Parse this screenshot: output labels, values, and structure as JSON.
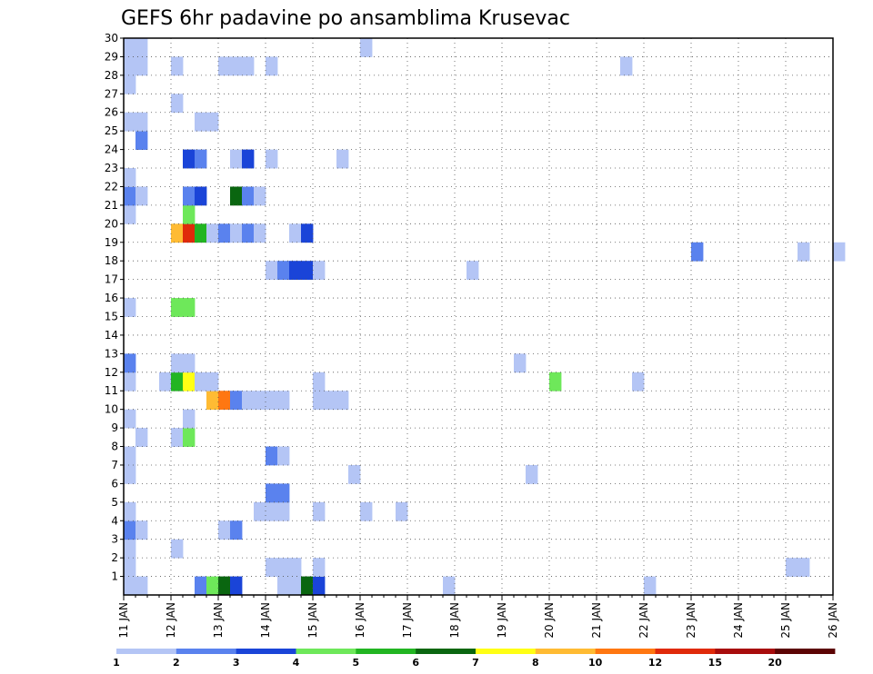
{
  "chart_data": {
    "type": "heatmap",
    "title": "GEFS 6hr padavine po ansamblima Krusevac",
    "xlabel": "",
    "ylabel": "",
    "x_ticks": [
      "11 JAN",
      "12 JAN",
      "13 JAN",
      "14 JAN",
      "15 JAN",
      "16 JAN",
      "17 JAN",
      "18 JAN",
      "19 JAN",
      "20 JAN",
      "21 JAN",
      "22 JAN",
      "23 JAN",
      "24 JAN",
      "25 JAN",
      "26 JAN"
    ],
    "y_ticks": [
      "1",
      "2",
      "3",
      "4",
      "5",
      "6",
      "7",
      "8",
      "9",
      "10",
      "11",
      "12",
      "13",
      "14",
      "15",
      "16",
      "17",
      "18",
      "19",
      "20",
      "21",
      "22",
      "23",
      "24",
      "25",
      "26",
      "27",
      "28",
      "29",
      "30"
    ],
    "xlim_days": [
      11,
      26
    ],
    "ylim": [
      0,
      30
    ],
    "time_step_hours": 6,
    "grid": true,
    "legend_position": "bottom",
    "legend": {
      "labels": [
        "1",
        "2",
        "3",
        "4",
        "5",
        "6",
        "7",
        "8",
        "10",
        "12",
        "15",
        "20"
      ],
      "colors": [
        "#b4c5f5",
        "#5a82ee",
        "#1a44d8",
        "#6ee85a",
        "#22b522",
        "#0a6610",
        "#ffff14",
        "#ffbb33",
        "#ff7711",
        "#e02a0a",
        "#a80c0c",
        "#5c0404"
      ]
    },
    "cells": [
      {
        "step": 0,
        "member": 0,
        "level": 1
      },
      {
        "step": 1,
        "member": 0,
        "level": 1
      },
      {
        "step": 6,
        "member": 0,
        "level": 2
      },
      {
        "step": 7,
        "member": 0,
        "level": 4
      },
      {
        "step": 8,
        "member": 0,
        "level": 6
      },
      {
        "step": 9,
        "member": 0,
        "level": 3
      },
      {
        "step": 13,
        "member": 0,
        "level": 1
      },
      {
        "step": 14,
        "member": 0,
        "level": 1
      },
      {
        "step": 15,
        "member": 0,
        "level": 6
      },
      {
        "step": 16,
        "member": 0,
        "level": 3
      },
      {
        "step": 27,
        "member": 0,
        "level": 1
      },
      {
        "step": 44,
        "member": 0,
        "level": 1
      },
      {
        "step": 0,
        "member": 1,
        "level": 1
      },
      {
        "step": 12,
        "member": 1,
        "level": 1
      },
      {
        "step": 13,
        "member": 1,
        "level": 1
      },
      {
        "step": 14,
        "member": 1,
        "level": 1
      },
      {
        "step": 16,
        "member": 1,
        "level": 1
      },
      {
        "step": 56,
        "member": 1,
        "level": 1
      },
      {
        "step": 57,
        "member": 1,
        "level": 1
      },
      {
        "step": 0,
        "member": 2,
        "level": 1
      },
      {
        "step": 4,
        "member": 2,
        "level": 1
      },
      {
        "step": 0,
        "member": 3,
        "level": 2
      },
      {
        "step": 1,
        "member": 3,
        "level": 1
      },
      {
        "step": 8,
        "member": 3,
        "level": 1
      },
      {
        "step": 9,
        "member": 3,
        "level": 2
      },
      {
        "step": 0,
        "member": 4,
        "level": 1
      },
      {
        "step": 11,
        "member": 4,
        "level": 1
      },
      {
        "step": 12,
        "member": 4,
        "level": 1
      },
      {
        "step": 13,
        "member": 4,
        "level": 1
      },
      {
        "step": 16,
        "member": 4,
        "level": 1
      },
      {
        "step": 20,
        "member": 4,
        "level": 1
      },
      {
        "step": 23,
        "member": 4,
        "level": 1
      },
      {
        "step": 12,
        "member": 5,
        "level": 2
      },
      {
        "step": 13,
        "member": 5,
        "level": 2
      },
      {
        "step": 0,
        "member": 6,
        "level": 1
      },
      {
        "step": 19,
        "member": 6,
        "level": 1
      },
      {
        "step": 34,
        "member": 6,
        "level": 1
      },
      {
        "step": 0,
        "member": 7,
        "level": 1
      },
      {
        "step": 12,
        "member": 7,
        "level": 2
      },
      {
        "step": 13,
        "member": 7,
        "level": 1
      },
      {
        "step": 1,
        "member": 8,
        "level": 1
      },
      {
        "step": 4,
        "member": 8,
        "level": 1
      },
      {
        "step": 5,
        "member": 8,
        "level": 4
      },
      {
        "step": 0,
        "member": 9,
        "level": 1
      },
      {
        "step": 5,
        "member": 9,
        "level": 1
      },
      {
        "step": 7,
        "member": 10,
        "level": 8
      },
      {
        "step": 8,
        "member": 10,
        "level": 9
      },
      {
        "step": 9,
        "member": 10,
        "level": 2
      },
      {
        "step": 10,
        "member": 10,
        "level": 1
      },
      {
        "step": 11,
        "member": 10,
        "level": 1
      },
      {
        "step": 12,
        "member": 10,
        "level": 1
      },
      {
        "step": 13,
        "member": 10,
        "level": 1
      },
      {
        "step": 16,
        "member": 10,
        "level": 1
      },
      {
        "step": 17,
        "member": 10,
        "level": 1
      },
      {
        "step": 18,
        "member": 10,
        "level": 1
      },
      {
        "step": 0,
        "member": 11,
        "level": 1
      },
      {
        "step": 3,
        "member": 11,
        "level": 1
      },
      {
        "step": 4,
        "member": 11,
        "level": 5
      },
      {
        "step": 5,
        "member": 11,
        "level": 7
      },
      {
        "step": 6,
        "member": 11,
        "level": 1
      },
      {
        "step": 7,
        "member": 11,
        "level": 1
      },
      {
        "step": 16,
        "member": 11,
        "level": 1
      },
      {
        "step": 36,
        "member": 11,
        "level": 4
      },
      {
        "step": 43,
        "member": 11,
        "level": 1
      },
      {
        "step": 0,
        "member": 12,
        "level": 2
      },
      {
        "step": 4,
        "member": 12,
        "level": 1
      },
      {
        "step": 5,
        "member": 12,
        "level": 1
      },
      {
        "step": 33,
        "member": 12,
        "level": 1
      },
      {
        "step": 0,
        "member": 15,
        "level": 1
      },
      {
        "step": 4,
        "member": 15,
        "level": 4
      },
      {
        "step": 5,
        "member": 15,
        "level": 4
      },
      {
        "step": 12,
        "member": 17,
        "level": 1
      },
      {
        "step": 13,
        "member": 17,
        "level": 2
      },
      {
        "step": 14,
        "member": 17,
        "level": 3
      },
      {
        "step": 15,
        "member": 17,
        "level": 3
      },
      {
        "step": 16,
        "member": 17,
        "level": 1
      },
      {
        "step": 29,
        "member": 17,
        "level": 1
      },
      {
        "step": 48,
        "member": 18,
        "level": 2
      },
      {
        "step": 57,
        "member": 18,
        "level": 1
      },
      {
        "step": 60,
        "member": 18,
        "level": 1
      },
      {
        "step": 4,
        "member": 19,
        "level": 8
      },
      {
        "step": 5,
        "member": 19,
        "level": 10
      },
      {
        "step": 6,
        "member": 19,
        "level": 5
      },
      {
        "step": 7,
        "member": 19,
        "level": 1
      },
      {
        "step": 8,
        "member": 19,
        "level": 2
      },
      {
        "step": 9,
        "member": 19,
        "level": 1
      },
      {
        "step": 10,
        "member": 19,
        "level": 2
      },
      {
        "step": 11,
        "member": 19,
        "level": 1
      },
      {
        "step": 14,
        "member": 19,
        "level": 1
      },
      {
        "step": 15,
        "member": 19,
        "level": 3
      },
      {
        "step": 0,
        "member": 20,
        "level": 1
      },
      {
        "step": 5,
        "member": 20,
        "level": 4
      },
      {
        "step": 0,
        "member": 21,
        "level": 2
      },
      {
        "step": 1,
        "member": 21,
        "level": 1
      },
      {
        "step": 5,
        "member": 21,
        "level": 2
      },
      {
        "step": 6,
        "member": 21,
        "level": 3
      },
      {
        "step": 9,
        "member": 21,
        "level": 6
      },
      {
        "step": 10,
        "member": 21,
        "level": 2
      },
      {
        "step": 11,
        "member": 21,
        "level": 1
      },
      {
        "step": 0,
        "member": 22,
        "level": 1
      },
      {
        "step": 5,
        "member": 23,
        "level": 3
      },
      {
        "step": 6,
        "member": 23,
        "level": 2
      },
      {
        "step": 9,
        "member": 23,
        "level": 1
      },
      {
        "step": 10,
        "member": 23,
        "level": 3
      },
      {
        "step": 12,
        "member": 23,
        "level": 1
      },
      {
        "step": 18,
        "member": 23,
        "level": 1
      },
      {
        "step": 1,
        "member": 24,
        "level": 2
      },
      {
        "step": 0,
        "member": 25,
        "level": 1
      },
      {
        "step": 1,
        "member": 25,
        "level": 1
      },
      {
        "step": 6,
        "member": 25,
        "level": 1
      },
      {
        "step": 7,
        "member": 25,
        "level": 1
      },
      {
        "step": 4,
        "member": 26,
        "level": 1
      },
      {
        "step": 0,
        "member": 27,
        "level": 1
      },
      {
        "step": 0,
        "member": 28,
        "level": 1
      },
      {
        "step": 1,
        "member": 28,
        "level": 1
      },
      {
        "step": 4,
        "member": 28,
        "level": 1
      },
      {
        "step": 8,
        "member": 28,
        "level": 1
      },
      {
        "step": 9,
        "member": 28,
        "level": 1
      },
      {
        "step": 10,
        "member": 28,
        "level": 1
      },
      {
        "step": 12,
        "member": 28,
        "level": 1
      },
      {
        "step": 42,
        "member": 28,
        "level": 1
      },
      {
        "step": 0,
        "member": 29,
        "level": 1
      },
      {
        "step": 1,
        "member": 29,
        "level": 1
      },
      {
        "step": 20,
        "member": 29,
        "level": 1
      }
    ]
  }
}
